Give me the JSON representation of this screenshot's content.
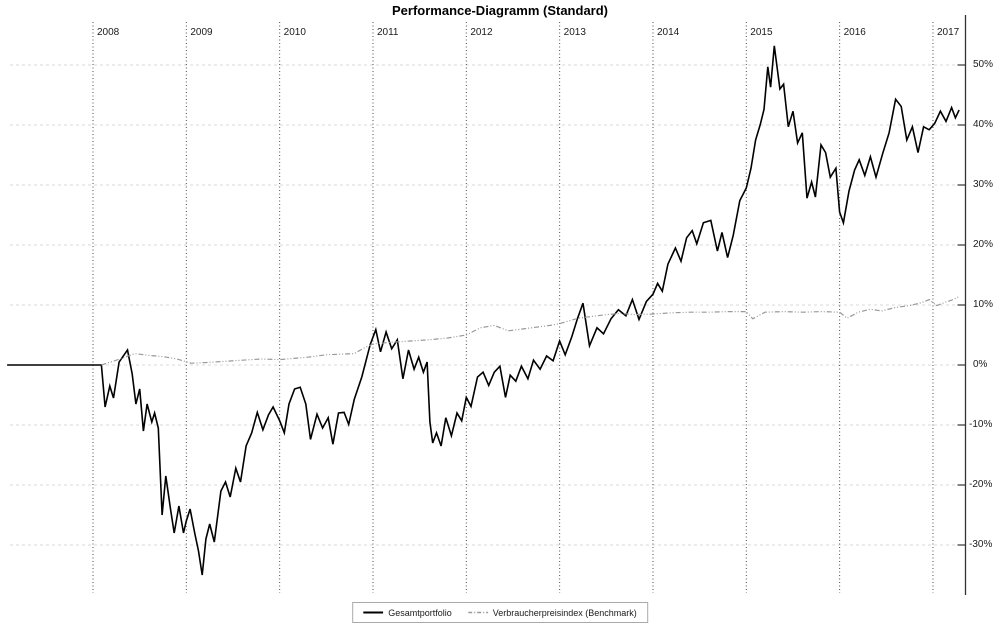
{
  "chart": {
    "title": "Performance-Diagramm (Standard)",
    "legend": [
      {
        "label": "Gesamtportfolio",
        "color": "#000000",
        "style": "solid"
      },
      {
        "label": "Verbraucherpreisindex (Benchmark)",
        "color": "#999999",
        "style": "dash-dot"
      }
    ]
  },
  "chart_data": {
    "type": "line",
    "title": "Performance-Diagramm (Standard)",
    "xlabel": "",
    "ylabel": "",
    "y_unit": "%",
    "x_ticks": [
      "2008",
      "2009",
      "2010",
      "2011",
      "2012",
      "2013",
      "2014",
      "2015",
      "2016",
      "2017"
    ],
    "y_ticks": [
      "50%",
      "40%",
      "30%",
      "20%",
      "10%",
      "0%",
      "-10%",
      "-20%",
      "-30%"
    ],
    "xlim": [
      2007.05,
      2017.35
    ],
    "ylim": [
      -38,
      57
    ],
    "grid": {
      "vertical": "dotted-dark",
      "horizontal": "dashed-light"
    },
    "legend_position": "bottom-center",
    "axis_position": "right",
    "colors": {
      "portfolio_line": "#000000",
      "benchmark_line": "#999999",
      "v_grid": "#4d4d4d",
      "h_grid": "#d9d9d9",
      "axis": "#333333",
      "label": "#1b1b1b"
    },
    "series": [
      {
        "name": "Gesamtportfolio",
        "color": "#000000",
        "line_style": "solid",
        "points": [
          [
            2007.08,
            0
          ],
          [
            2007.35,
            0
          ],
          [
            2007.6,
            0
          ],
          [
            2007.85,
            0
          ],
          [
            2008.09,
            0
          ],
          [
            2008.13,
            -7
          ],
          [
            2008.18,
            -3.5
          ],
          [
            2008.22,
            -5.5
          ],
          [
            2008.28,
            0.5
          ],
          [
            2008.37,
            2.5
          ],
          [
            2008.42,
            -1.5
          ],
          [
            2008.46,
            -6.5
          ],
          [
            2008.5,
            -4
          ],
          [
            2008.54,
            -11
          ],
          [
            2008.58,
            -6.5
          ],
          [
            2008.63,
            -9.5
          ],
          [
            2008.66,
            -8
          ],
          [
            2008.7,
            -10.5
          ],
          [
            2008.74,
            -25
          ],
          [
            2008.78,
            -18.5
          ],
          [
            2008.83,
            -24
          ],
          [
            2008.87,
            -28
          ],
          [
            2008.92,
            -23.5
          ],
          [
            2008.97,
            -28
          ],
          [
            2009.0,
            -26
          ],
          [
            2009.04,
            -24
          ],
          [
            2009.09,
            -28
          ],
          [
            2009.13,
            -31
          ],
          [
            2009.17,
            -35
          ],
          [
            2009.21,
            -29
          ],
          [
            2009.25,
            -26.5
          ],
          [
            2009.3,
            -29.5
          ],
          [
            2009.37,
            -21
          ],
          [
            2009.42,
            -19.5
          ],
          [
            2009.47,
            -22
          ],
          [
            2009.53,
            -17.2
          ],
          [
            2009.58,
            -19.5
          ],
          [
            2009.64,
            -13.5
          ],
          [
            2009.7,
            -11.3
          ],
          [
            2009.76,
            -7.9
          ],
          [
            2009.82,
            -10.8
          ],
          [
            2009.88,
            -8.3
          ],
          [
            2009.93,
            -7
          ],
          [
            2010.0,
            -9.3
          ],
          [
            2010.05,
            -11.3
          ],
          [
            2010.1,
            -6.5
          ],
          [
            2010.16,
            -4
          ],
          [
            2010.22,
            -3.7
          ],
          [
            2010.28,
            -6.5
          ],
          [
            2010.33,
            -12.4
          ],
          [
            2010.4,
            -8.2
          ],
          [
            2010.46,
            -10.5
          ],
          [
            2010.52,
            -8.8
          ],
          [
            2010.57,
            -13.2
          ],
          [
            2010.63,
            -8
          ],
          [
            2010.69,
            -7.9
          ],
          [
            2010.74,
            -9.9
          ],
          [
            2010.8,
            -5.7
          ],
          [
            2010.88,
            -2
          ],
          [
            2010.97,
            3.4
          ],
          [
            2011.03,
            5.9
          ],
          [
            2011.08,
            2.2
          ],
          [
            2011.14,
            5.5
          ],
          [
            2011.2,
            2.7
          ],
          [
            2011.26,
            4.2
          ],
          [
            2011.32,
            -2.3
          ],
          [
            2011.38,
            2.5
          ],
          [
            2011.44,
            -0.7
          ],
          [
            2011.49,
            1.3
          ],
          [
            2011.54,
            -1.2
          ],
          [
            2011.58,
            0.5
          ],
          [
            2011.61,
            -9.5
          ],
          [
            2011.64,
            -13
          ],
          [
            2011.68,
            -11.3
          ],
          [
            2011.73,
            -13.5
          ],
          [
            2011.78,
            -8.8
          ],
          [
            2011.84,
            -11.8
          ],
          [
            2011.9,
            -8
          ],
          [
            2011.95,
            -9.3
          ],
          [
            2012.0,
            -5.4
          ],
          [
            2012.05,
            -6.9
          ],
          [
            2012.12,
            -2
          ],
          [
            2012.18,
            -1.2
          ],
          [
            2012.24,
            -3.4
          ],
          [
            2012.3,
            -1.2
          ],
          [
            2012.36,
            -0.2
          ],
          [
            2012.42,
            -5.4
          ],
          [
            2012.47,
            -1.7
          ],
          [
            2012.53,
            -2.7
          ],
          [
            2012.59,
            -0.2
          ],
          [
            2012.66,
            -2.3
          ],
          [
            2012.72,
            0.8
          ],
          [
            2012.79,
            -0.7
          ],
          [
            2012.86,
            1.5
          ],
          [
            2012.93,
            0.7
          ],
          [
            2013.0,
            4
          ],
          [
            2013.06,
            1.7
          ],
          [
            2013.13,
            4.7
          ],
          [
            2013.19,
            7.7
          ],
          [
            2013.25,
            10.3
          ],
          [
            2013.32,
            3.2
          ],
          [
            2013.4,
            6.2
          ],
          [
            2013.47,
            5.2
          ],
          [
            2013.55,
            7.7
          ],
          [
            2013.63,
            9.2
          ],
          [
            2013.71,
            8.2
          ],
          [
            2013.78,
            10.9
          ],
          [
            2013.85,
            7.6
          ],
          [
            2013.93,
            10.6
          ],
          [
            2014.0,
            11.8
          ],
          [
            2014.05,
            13.6
          ],
          [
            2014.1,
            12.3
          ],
          [
            2014.16,
            16.8
          ],
          [
            2014.24,
            19.5
          ],
          [
            2014.3,
            17.3
          ],
          [
            2014.36,
            21.2
          ],
          [
            2014.42,
            22.4
          ],
          [
            2014.47,
            20.2
          ],
          [
            2014.54,
            23.7
          ],
          [
            2014.62,
            24.1
          ],
          [
            2014.69,
            19
          ],
          [
            2014.74,
            22.1
          ],
          [
            2014.8,
            17.9
          ],
          [
            2014.86,
            21.6
          ],
          [
            2014.93,
            27.4
          ],
          [
            2015.0,
            29.5
          ],
          [
            2015.05,
            32.8
          ],
          [
            2015.1,
            37.5
          ],
          [
            2015.15,
            40.1
          ],
          [
            2015.19,
            42.6
          ],
          [
            2015.23,
            49.7
          ],
          [
            2015.26,
            46.3
          ],
          [
            2015.3,
            53.2
          ],
          [
            2015.36,
            46
          ],
          [
            2015.4,
            46.8
          ],
          [
            2015.45,
            39.7
          ],
          [
            2015.5,
            42.3
          ],
          [
            2015.55,
            37
          ],
          [
            2015.6,
            38.7
          ],
          [
            2015.65,
            27.8
          ],
          [
            2015.7,
            30.5
          ],
          [
            2015.74,
            28
          ],
          [
            2015.8,
            36.7
          ],
          [
            2015.85,
            35.4
          ],
          [
            2015.9,
            31.3
          ],
          [
            2015.96,
            32.8
          ],
          [
            2016.0,
            25.5
          ],
          [
            2016.04,
            23.7
          ],
          [
            2016.1,
            29
          ],
          [
            2016.16,
            32.5
          ],
          [
            2016.21,
            34.2
          ],
          [
            2016.27,
            31.6
          ],
          [
            2016.33,
            34.7
          ],
          [
            2016.39,
            31.3
          ],
          [
            2016.46,
            35.2
          ],
          [
            2016.53,
            38.7
          ],
          [
            2016.6,
            44.3
          ],
          [
            2016.66,
            43.1
          ],
          [
            2016.72,
            37.5
          ],
          [
            2016.78,
            39.7
          ],
          [
            2016.84,
            35.4
          ],
          [
            2016.9,
            39.7
          ],
          [
            2016.96,
            39.2
          ],
          [
            2017.02,
            40.3
          ],
          [
            2017.08,
            42.3
          ],
          [
            2017.14,
            40.6
          ],
          [
            2017.2,
            42.9
          ],
          [
            2017.24,
            41.2
          ],
          [
            2017.28,
            42.5
          ]
        ]
      },
      {
        "name": "Verbraucherpreisindex (Benchmark)",
        "color": "#999999",
        "line_style": "dash-dot",
        "points": [
          [
            2008.09,
            0
          ],
          [
            2008.25,
            0.8
          ],
          [
            2008.45,
            1.9
          ],
          [
            2008.6,
            1.6
          ],
          [
            2008.75,
            1.4
          ],
          [
            2008.9,
            1.0
          ],
          [
            2009.05,
            0.3
          ],
          [
            2009.2,
            0.4
          ],
          [
            2009.4,
            0.6
          ],
          [
            2009.6,
            0.8
          ],
          [
            2009.8,
            1.0
          ],
          [
            2010.0,
            0.9
          ],
          [
            2010.15,
            1.1
          ],
          [
            2010.3,
            1.3
          ],
          [
            2010.5,
            1.7
          ],
          [
            2010.65,
            1.8
          ],
          [
            2010.8,
            1.9
          ],
          [
            2010.9,
            2.8
          ],
          [
            2011.0,
            3.5
          ],
          [
            2011.2,
            3.8
          ],
          [
            2011.4,
            4.0
          ],
          [
            2011.6,
            4.2
          ],
          [
            2011.8,
            4.5
          ],
          [
            2012.0,
            5.0
          ],
          [
            2012.15,
            6.2
          ],
          [
            2012.3,
            6.6
          ],
          [
            2012.45,
            5.7
          ],
          [
            2012.6,
            6.0
          ],
          [
            2012.75,
            6.3
          ],
          [
            2012.9,
            6.6
          ],
          [
            2013.0,
            6.9
          ],
          [
            2013.2,
            7.8
          ],
          [
            2013.35,
            8.1
          ],
          [
            2013.5,
            8.4
          ],
          [
            2013.65,
            8.6
          ],
          [
            2013.8,
            8.4
          ],
          [
            2014.0,
            8.5
          ],
          [
            2014.2,
            8.7
          ],
          [
            2014.4,
            8.8
          ],
          [
            2014.6,
            8.8
          ],
          [
            2014.8,
            8.9
          ],
          [
            2015.0,
            8.9
          ],
          [
            2015.07,
            7.7
          ],
          [
            2015.2,
            8.8
          ],
          [
            2015.4,
            8.9
          ],
          [
            2015.6,
            8.8
          ],
          [
            2015.8,
            8.9
          ],
          [
            2016.0,
            8.8
          ],
          [
            2016.08,
            7.8
          ],
          [
            2016.2,
            8.8
          ],
          [
            2016.33,
            9.3
          ],
          [
            2016.45,
            9.0
          ],
          [
            2016.6,
            9.6
          ],
          [
            2016.75,
            9.9
          ],
          [
            2016.88,
            10.4
          ],
          [
            2016.96,
            10.9
          ],
          [
            2017.04,
            9.9
          ],
          [
            2017.12,
            10.4
          ],
          [
            2017.2,
            10.8
          ],
          [
            2017.28,
            11.4
          ]
        ]
      }
    ]
  }
}
